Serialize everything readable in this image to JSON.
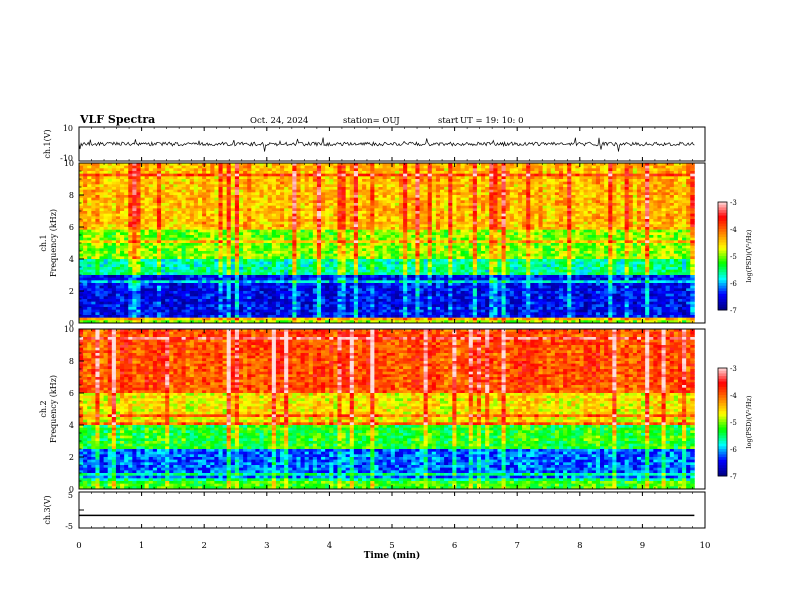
{
  "header": {
    "title": "VLF Spectra",
    "date": "Oct. 24, 2024",
    "station": "station= OUJ",
    "start_label": "start",
    "start_time": "UT =   19: 10: 0"
  },
  "colors": {
    "colormap": [
      "#00007f",
      "#0000ff",
      "#00ffff",
      "#00ff00",
      "#ffff00",
      "#ff7f00",
      "#ff0000",
      "#ffdfdf"
    ]
  },
  "chart_data": [
    {
      "type": "line",
      "panel": "ch1-waveform",
      "ylabel": "ch.1(V)",
      "ylim": [
        -10,
        10
      ],
      "y_ticks": [
        "10",
        "-10"
      ],
      "x": [
        0,
        9.83
      ],
      "series": [
        {
          "values": [
            0,
            0
          ],
          "note": "noisy waveform around 0 V, amplitude ~±1 V with spikes"
        }
      ]
    },
    {
      "type": "heatmap",
      "panel": "ch1-spectrogram",
      "ylabel": "ch.1\nFrequency (kHz)",
      "ylim": [
        0,
        10
      ],
      "y_ticks": [
        "0",
        "2",
        "4",
        "6",
        "8",
        "10"
      ],
      "xlim": [
        0,
        10
      ],
      "colorbar": {
        "label": "log(PSD)(V²/Hz)",
        "range": [
          -7,
          -3
        ],
        "ticks": [
          "-3",
          "-4",
          "-5",
          "-6",
          "-7"
        ]
      },
      "bands_khz": [
        {
          "from": 0,
          "to": 0.4,
          "level": -5.0
        },
        {
          "from": 0.4,
          "to": 3.0,
          "level": -6.5
        },
        {
          "from": 3.0,
          "to": 4.0,
          "level": -5.6
        },
        {
          "from": 4.0,
          "to": 6.0,
          "level": -5.0
        },
        {
          "from": 6.0,
          "to": 10.0,
          "level": -4.4
        }
      ]
    },
    {
      "type": "heatmap",
      "panel": "ch2-spectrogram",
      "ylabel": "ch.2\nFrequency (kHz)",
      "ylim": [
        0,
        10
      ],
      "y_ticks": [
        "0",
        "2",
        "4",
        "6",
        "8",
        "10"
      ],
      "xlim": [
        0,
        10
      ],
      "colorbar": {
        "label": "log(PSD)(V²/Hz)",
        "range": [
          -7,
          -3
        ],
        "ticks": [
          "-3",
          "-4",
          "-5",
          "-6",
          "-7"
        ]
      },
      "bands_khz": [
        {
          "from": 0,
          "to": 0.5,
          "level": -5.2
        },
        {
          "from": 0.5,
          "to": 2.5,
          "level": -6.2
        },
        {
          "from": 2.5,
          "to": 4.0,
          "level": -5.3
        },
        {
          "from": 4.0,
          "to": 6.0,
          "level": -4.6
        },
        {
          "from": 6.0,
          "to": 10.0,
          "level": -3.9
        }
      ]
    },
    {
      "type": "line",
      "panel": "ch3-waveform",
      "ylabel": "ch.3(V)",
      "ylim": [
        -5,
        5
      ],
      "y_ticks": [
        "5",
        "0",
        "-5"
      ],
      "x": [
        0,
        9.83
      ],
      "series": [
        {
          "values": [
            -1.5,
            -1.5
          ]
        }
      ]
    }
  ],
  "x_axis": {
    "label": "Time (min)",
    "ticks": [
      "0",
      "1",
      "2",
      "3",
      "4",
      "5",
      "6",
      "7",
      "8",
      "9",
      "10"
    ],
    "xlim": [
      0,
      10
    ],
    "data_end": 9.83
  }
}
